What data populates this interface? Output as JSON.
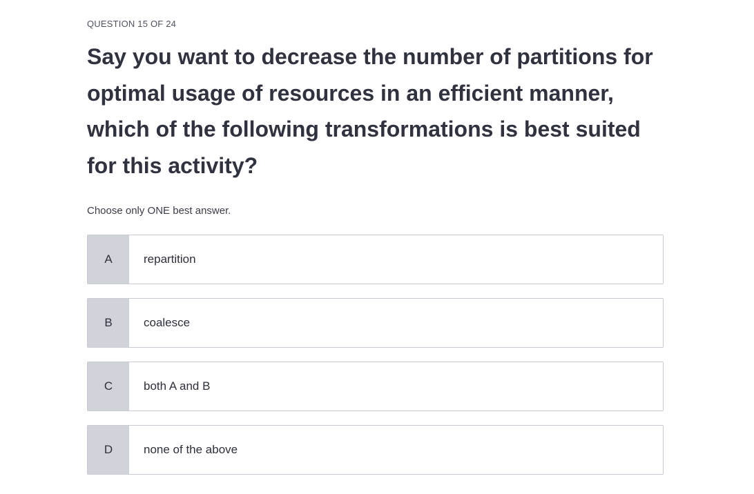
{
  "quiz": {
    "counter": "QUESTION 15 OF 24",
    "question": "Say you want to decrease the number of partitions for optimal usage of resources in an efficient manner, which of the following transformations is best suited for this activity?",
    "instruction": "Choose only ONE best answer.",
    "options": [
      {
        "letter": "A",
        "text": "repartition"
      },
      {
        "letter": "B",
        "text": "coalesce"
      },
      {
        "letter": "C",
        "text": "both A and B"
      },
      {
        "letter": "D",
        "text": "none of the above"
      }
    ]
  }
}
